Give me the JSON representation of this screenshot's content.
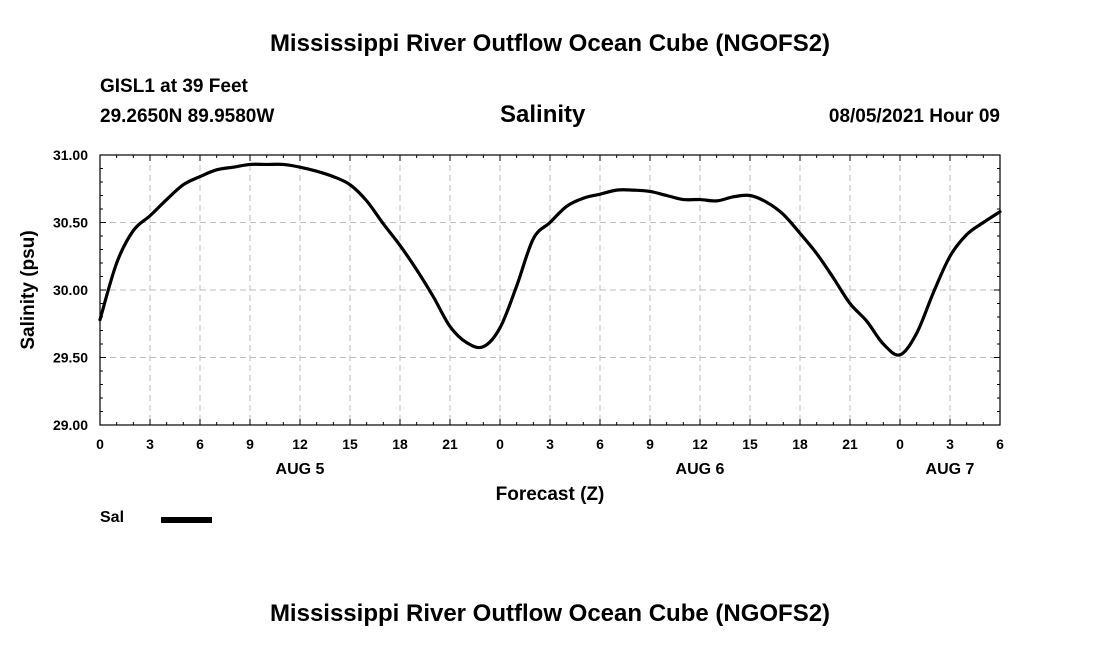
{
  "page": {
    "title_top": "Mississippi River Outflow Ocean Cube (NGOFS2)",
    "station": "GISL1 at 39 Feet",
    "coords": "29.2650N  89.9580W",
    "variable": "Salinity",
    "datetime": "08/05/2021 Hour 09",
    "title_bottom": "Mississippi River Outflow Ocean Cube (NGOFS2)"
  },
  "chart_data": {
    "type": "line",
    "title": "Salinity",
    "xlabel": "Forecast (Z)",
    "ylabel": "Salinity (psu)",
    "xlim": [
      0,
      54
    ],
    "ylim": [
      29.0,
      31.0
    ],
    "grid": true,
    "legend_position": "bottom-left",
    "x_tick_values": [
      0,
      3,
      6,
      9,
      12,
      15,
      18,
      21,
      24,
      27,
      30,
      33,
      36,
      39,
      42,
      45,
      48,
      51,
      54
    ],
    "x_tick_labels": [
      "0",
      "3",
      "6",
      "9",
      "12",
      "15",
      "18",
      "21",
      "0",
      "3",
      "6",
      "9",
      "12",
      "15",
      "18",
      "21",
      "0",
      "3",
      "6"
    ],
    "day_labels": [
      {
        "x": 12,
        "label": "AUG 5"
      },
      {
        "x": 36,
        "label": "AUG 6"
      },
      {
        "x": 51,
        "label": "AUG 7"
      }
    ],
    "y_ticks": [
      29.0,
      29.5,
      30.0,
      30.5,
      31.0
    ],
    "y_tick_labels": [
      "29.00",
      "29.50",
      "30.00",
      "30.50",
      "31.00"
    ],
    "series": [
      {
        "name": "Sal",
        "color": "#000000",
        "x": [
          0,
          1,
          2,
          3,
          4,
          5,
          6,
          7,
          8,
          9,
          10,
          11,
          12,
          13,
          14,
          15,
          16,
          17,
          18,
          19,
          20,
          21,
          22,
          23,
          24,
          25,
          26,
          27,
          28,
          29,
          30,
          31,
          32,
          33,
          34,
          35,
          36,
          37,
          38,
          39,
          40,
          41,
          42,
          43,
          44,
          45,
          46,
          47,
          48,
          49,
          50,
          51,
          52,
          53,
          54
        ],
        "values": [
          29.78,
          30.2,
          30.44,
          30.55,
          30.67,
          30.78,
          30.84,
          30.89,
          30.91,
          30.93,
          30.93,
          30.93,
          30.91,
          30.88,
          30.84,
          30.78,
          30.66,
          30.49,
          30.33,
          30.15,
          29.95,
          29.73,
          29.61,
          29.58,
          29.72,
          30.03,
          30.38,
          30.5,
          30.62,
          30.68,
          30.71,
          30.74,
          30.74,
          30.73,
          30.7,
          30.67,
          30.67,
          30.66,
          30.69,
          30.7,
          30.65,
          30.56,
          30.42,
          30.27,
          30.09,
          29.9,
          29.77,
          29.6,
          29.52,
          29.68,
          29.98,
          30.25,
          30.41,
          30.5,
          30.58
        ]
      }
    ]
  }
}
